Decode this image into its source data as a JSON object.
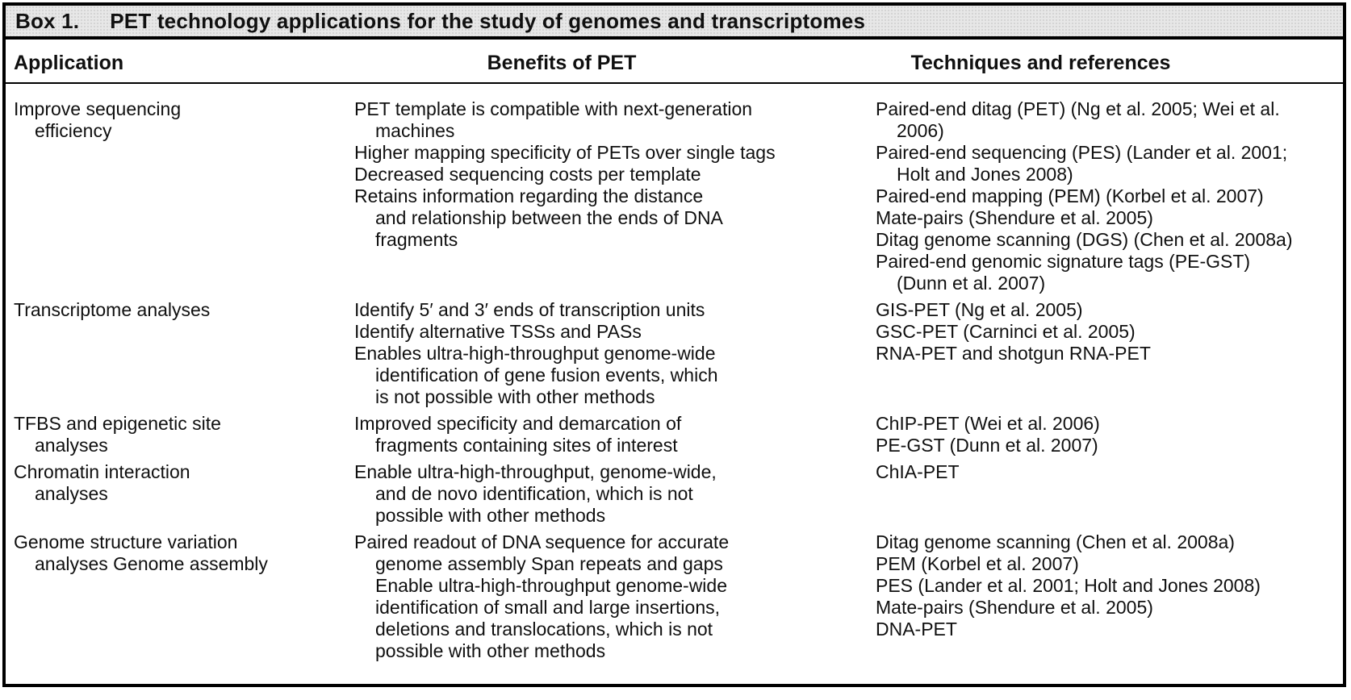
{
  "colors": {
    "border": "#000000",
    "text": "#101010",
    "titlebar_bg": "#e7e7e7",
    "page_bg": "#ffffff"
  },
  "title": {
    "label": "Box 1.",
    "text": "PET technology applications for the study of genomes and transcriptomes"
  },
  "columns": [
    {
      "key": "application",
      "label": "Application"
    },
    {
      "key": "benefits",
      "label": "Benefits of PET"
    },
    {
      "key": "techniques",
      "label": "Techniques and references"
    }
  ],
  "rows": [
    {
      "application": [
        {
          "t": "Improve sequencing",
          "i": 0
        },
        {
          "t": "efficiency",
          "i": 1
        }
      ],
      "benefits": [
        {
          "t": "PET template is compatible with next-generation",
          "i": 0
        },
        {
          "t": "machines",
          "i": 1
        },
        {
          "t": "Higher mapping specificity of PETs over single tags",
          "i": 0
        },
        {
          "t": "Decreased sequencing costs per template",
          "i": 0
        },
        {
          "t": "Retains information regarding the distance",
          "i": 0
        },
        {
          "t": "and relationship between the ends of DNA",
          "i": 1
        },
        {
          "t": "fragments",
          "i": 1
        }
      ],
      "techniques": [
        {
          "t": "Paired-end ditag (PET) (Ng et al. 2005; Wei et al.",
          "i": 0
        },
        {
          "t": "2006)",
          "i": 1
        },
        {
          "t": "Paired-end sequencing (PES) (Lander et al. 2001;",
          "i": 0
        },
        {
          "t": "Holt and Jones 2008)",
          "i": 1
        },
        {
          "t": "Paired-end mapping (PEM) (Korbel et al. 2007)",
          "i": 0
        },
        {
          "t": "Mate-pairs (Shendure et al. 2005)",
          "i": 0
        },
        {
          "t": "Ditag genome scanning (DGS) (Chen et al. 2008a)",
          "i": 0
        },
        {
          "t": "Paired-end genomic signature tags (PE-GST)",
          "i": 0
        },
        {
          "t": "(Dunn et al. 2007)",
          "i": 1
        }
      ]
    },
    {
      "application": [
        {
          "t": "Transcriptome analyses",
          "i": 0
        }
      ],
      "benefits": [
        {
          "t": "Identify 5′ and 3′ ends of transcription units",
          "i": 0
        },
        {
          "t": "Identify alternative TSSs and PASs",
          "i": 0
        },
        {
          "t": "Enables ultra-high-throughput genome-wide",
          "i": 0
        },
        {
          "t": "identification of gene fusion events, which",
          "i": 1
        },
        {
          "t": "is not possible with other methods",
          "i": 1
        }
      ],
      "techniques": [
        {
          "t": "GIS-PET (Ng et al. 2005)",
          "i": 0
        },
        {
          "t": "GSC-PET (Carninci et al. 2005)",
          "i": 0
        },
        {
          "t": "RNA-PET and shotgun RNA-PET",
          "i": 0
        }
      ]
    },
    {
      "application": [
        {
          "t": "TFBS and epigenetic site",
          "i": 0
        },
        {
          "t": "analyses",
          "i": 1
        }
      ],
      "benefits": [
        {
          "t": "Improved specificity and demarcation of",
          "i": 0
        },
        {
          "t": "fragments containing sites of interest",
          "i": 1
        }
      ],
      "techniques": [
        {
          "t": "ChIP-PET (Wei et al. 2006)",
          "i": 0
        },
        {
          "t": "PE-GST (Dunn et al. 2007)",
          "i": 0
        }
      ]
    },
    {
      "application": [
        {
          "t": "Chromatin interaction",
          "i": 0
        },
        {
          "t": "analyses",
          "i": 1
        }
      ],
      "benefits": [
        {
          "t": "Enable ultra-high-throughput, genome-wide,",
          "i": 0
        },
        {
          "t": "and de novo identification, which is not",
          "i": 1
        },
        {
          "t": "possible with other methods",
          "i": 1
        }
      ],
      "techniques": [
        {
          "t": "ChIA-PET",
          "i": 0
        }
      ]
    },
    {
      "application": [
        {
          "t": "Genome structure variation",
          "i": 0
        },
        {
          "t": "analyses Genome assembly",
          "i": 1
        }
      ],
      "benefits": [
        {
          "t": "Paired readout of DNA sequence for accurate",
          "i": 0
        },
        {
          "t": "genome assembly Span repeats and gaps",
          "i": 1
        },
        {
          "t": "Enable ultra-high-throughput genome-wide",
          "i": 1
        },
        {
          "t": "identification of small and large insertions,",
          "i": 1
        },
        {
          "t": "deletions and translocations, which is not",
          "i": 1
        },
        {
          "t": "possible with other methods",
          "i": 1
        }
      ],
      "techniques": [
        {
          "t": "Ditag genome scanning (Chen et al. 2008a)",
          "i": 0
        },
        {
          "t": "PEM (Korbel et al. 2007)",
          "i": 0
        },
        {
          "t": "PES (Lander et al. 2001; Holt and Jones 2008)",
          "i": 0
        },
        {
          "t": "Mate-pairs (Shendure et al. 2005)",
          "i": 0
        },
        {
          "t": "DNA-PET",
          "i": 0
        }
      ]
    }
  ]
}
